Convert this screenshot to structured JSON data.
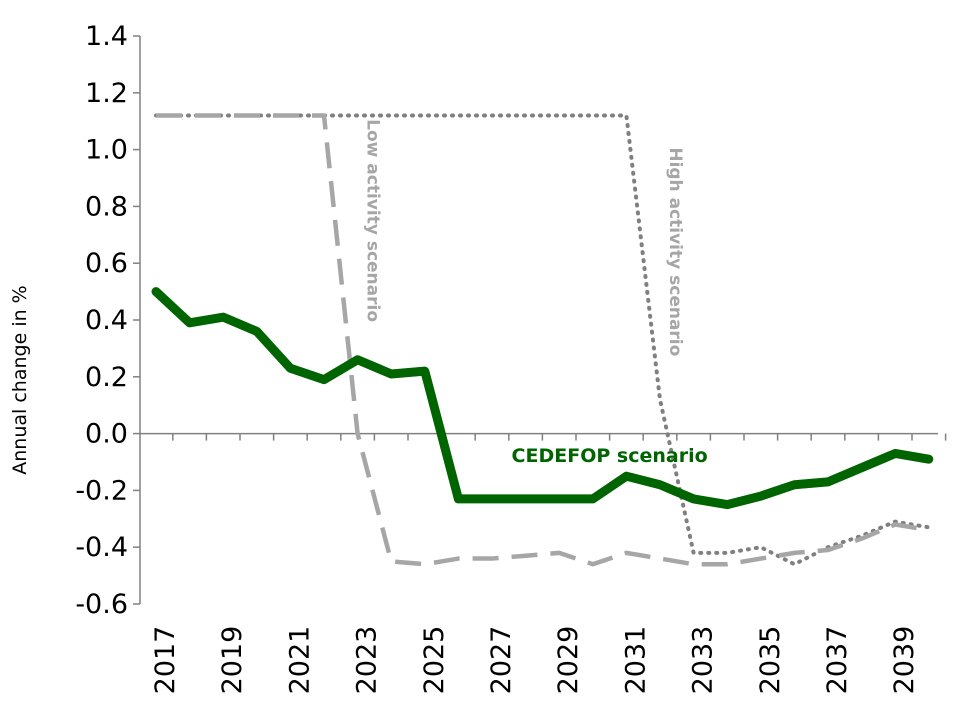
{
  "chart_data": {
    "type": "line",
    "title": "",
    "xlabel": "",
    "ylabel": "Annual change in %",
    "ylim": [
      -0.6,
      1.4
    ],
    "yticks": [
      1.4,
      1.2,
      1.0,
      0.8,
      0.6,
      0.4,
      0.2,
      0.0,
      -0.2,
      -0.4,
      -0.6
    ],
    "ytick_labels": [
      "1.4",
      "1.2",
      "1.0",
      "0.8",
      "0.6",
      "0.4",
      "0.2",
      "0.0",
      "-0.2",
      "-0.4",
      "-0.6"
    ],
    "xtick_labels": [
      "2017",
      "2019",
      "2021",
      "2023",
      "2025",
      "2027",
      "2029",
      "2031",
      "2033",
      "2035",
      "2037",
      "2039"
    ],
    "x": [
      2017,
      2018,
      2019,
      2020,
      2021,
      2022,
      2023,
      2024,
      2025,
      2026,
      2027,
      2028,
      2029,
      2030,
      2031,
      2032,
      2033,
      2034,
      2035,
      2036,
      2037,
      2038,
      2039,
      2040
    ],
    "grid": false,
    "legend": "none",
    "series": [
      {
        "name": "CEDEFOP scenario",
        "color": "#006400",
        "style": "solid",
        "values": [
          0.5,
          0.39,
          0.41,
          0.36,
          0.23,
          0.19,
          0.26,
          0.21,
          0.22,
          -0.23,
          -0.23,
          -0.23,
          -0.23,
          -0.23,
          -0.15,
          -0.18,
          -0.23,
          -0.25,
          -0.22,
          -0.18,
          -0.17,
          -0.12,
          -0.07,
          -0.09
        ]
      },
      {
        "name": "Low activity scenario",
        "color": "#a6a6a6",
        "style": "dashed",
        "values": [
          1.12,
          1.12,
          1.12,
          1.12,
          1.12,
          1.12,
          0.0,
          -0.45,
          -0.46,
          -0.44,
          -0.44,
          -0.43,
          -0.42,
          -0.46,
          -0.42,
          -0.44,
          -0.46,
          -0.46,
          -0.44,
          -0.42,
          -0.41,
          -0.37,
          -0.32,
          -0.34
        ]
      },
      {
        "name": "High activity scenario",
        "color": "#808080",
        "style": "dotted",
        "values": [
          1.12,
          1.12,
          1.12,
          1.12,
          1.12,
          1.12,
          1.12,
          1.12,
          1.12,
          1.12,
          1.12,
          1.12,
          1.12,
          1.12,
          1.12,
          0.12,
          -0.42,
          -0.42,
          -0.4,
          -0.46,
          -0.4,
          -0.36,
          -0.31,
          -0.33
        ]
      }
    ],
    "annotations": [
      {
        "text": "CEDEFOP scenario",
        "color": "#006400",
        "anchor_year": 2030.5,
        "anchor_value": -0.1,
        "rotation": 0
      },
      {
        "text": "Low activity scenario",
        "color": "#a6a6a6",
        "anchor_year": 2023.3,
        "anchor_value": 0.75,
        "rotation": 90
      },
      {
        "text": "High activity scenario",
        "color": "#a6a6a6",
        "anchor_year": 2032.3,
        "anchor_value": 0.64,
        "rotation": 90
      }
    ]
  }
}
